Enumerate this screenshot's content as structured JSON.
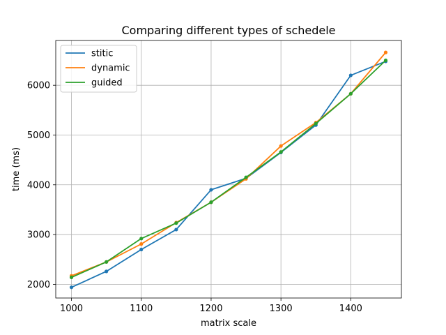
{
  "chart_data": {
    "type": "line",
    "title": "Comparing different types of schedele",
    "xlabel": "matrix scale",
    "ylabel": "time (ms)",
    "x": [
      1000,
      1050,
      1100,
      1150,
      1200,
      1250,
      1300,
      1350,
      1400,
      1450
    ],
    "xlim": [
      977.5,
      1472.5
    ],
    "ylim": [
      1725,
      6900
    ],
    "xticks": [
      1000,
      1100,
      1200,
      1300,
      1400
    ],
    "yticks": [
      2000,
      3000,
      4000,
      5000,
      6000
    ],
    "grid": true,
    "legend_position": "top-left",
    "marker": "dot",
    "series": [
      {
        "name": "stitic",
        "color": "#1f77b4",
        "values": [
          1940,
          2260,
          2700,
          3100,
          3900,
          4130,
          4650,
          5200,
          6200,
          6480
        ]
      },
      {
        "name": "dynamic",
        "color": "#ff7f0e",
        "values": [
          2170,
          2450,
          2810,
          3240,
          3650,
          4120,
          4780,
          5250,
          5830,
          6660
        ]
      },
      {
        "name": "guided",
        "color": "#2ca02c",
        "values": [
          2140,
          2450,
          2920,
          3230,
          3650,
          4150,
          4660,
          5230,
          5830,
          6500
        ]
      }
    ]
  }
}
